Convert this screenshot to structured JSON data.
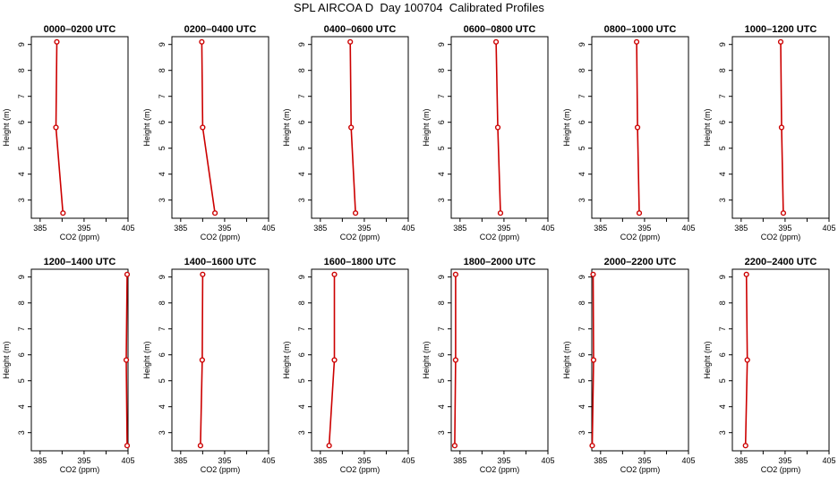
{
  "figure": {
    "title": "SPL AIRCOA D  Day 100704  Calibrated Profiles"
  },
  "chart_data": {
    "type": "line",
    "layout": "grid 2 rows x 6 columns",
    "xlabel": "CO2 (ppm)",
    "ylabel": "Height (m)",
    "xlim": [
      383,
      405
    ],
    "ylim": [
      2.3,
      9.3
    ],
    "xticks": [
      385,
      390,
      395,
      400,
      405
    ],
    "xtick_labels": [
      "385",
      "395",
      "405"
    ],
    "yticks": [
      3,
      4,
      5,
      6,
      7,
      8,
      9
    ],
    "heights": [
      9.1,
      5.8,
      2.5
    ],
    "line_color": "#cc0000",
    "marker": "open circle",
    "grid": false,
    "panels": [
      {
        "title": "0000–0200 UTC",
        "co2": [
          388.8,
          388.6,
          390.2
        ]
      },
      {
        "title": "0200–0400 UTC",
        "co2": [
          389.8,
          390.0,
          392.8
        ]
      },
      {
        "title": "0400–0600 UTC",
        "co2": [
          391.8,
          392.0,
          393.0
        ]
      },
      {
        "title": "0600–0800 UTC",
        "co2": [
          393.2,
          393.6,
          394.2
        ]
      },
      {
        "title": "0800–1000 UTC",
        "co2": [
          393.2,
          393.4,
          393.8
        ]
      },
      {
        "title": "1000–1200 UTC",
        "co2": [
          394.0,
          394.2,
          394.6
        ]
      },
      {
        "title": "1200–1400 UTC",
        "co2": [
          404.8,
          404.6,
          404.8
        ]
      },
      {
        "title": "1400–1600 UTC",
        "co2": [
          390.0,
          389.9,
          389.5
        ]
      },
      {
        "title": "1600–1800 UTC",
        "co2": [
          388.2,
          388.2,
          387.0
        ]
      },
      {
        "title": "1800–2000 UTC",
        "co2": [
          384.0,
          384.0,
          383.8
        ]
      },
      {
        "title": "2000–2200 UTC",
        "co2": [
          383.3,
          383.4,
          383.1
        ]
      },
      {
        "title": "2200–2400 UTC",
        "co2": [
          386.2,
          386.4,
          386.0
        ]
      }
    ]
  }
}
